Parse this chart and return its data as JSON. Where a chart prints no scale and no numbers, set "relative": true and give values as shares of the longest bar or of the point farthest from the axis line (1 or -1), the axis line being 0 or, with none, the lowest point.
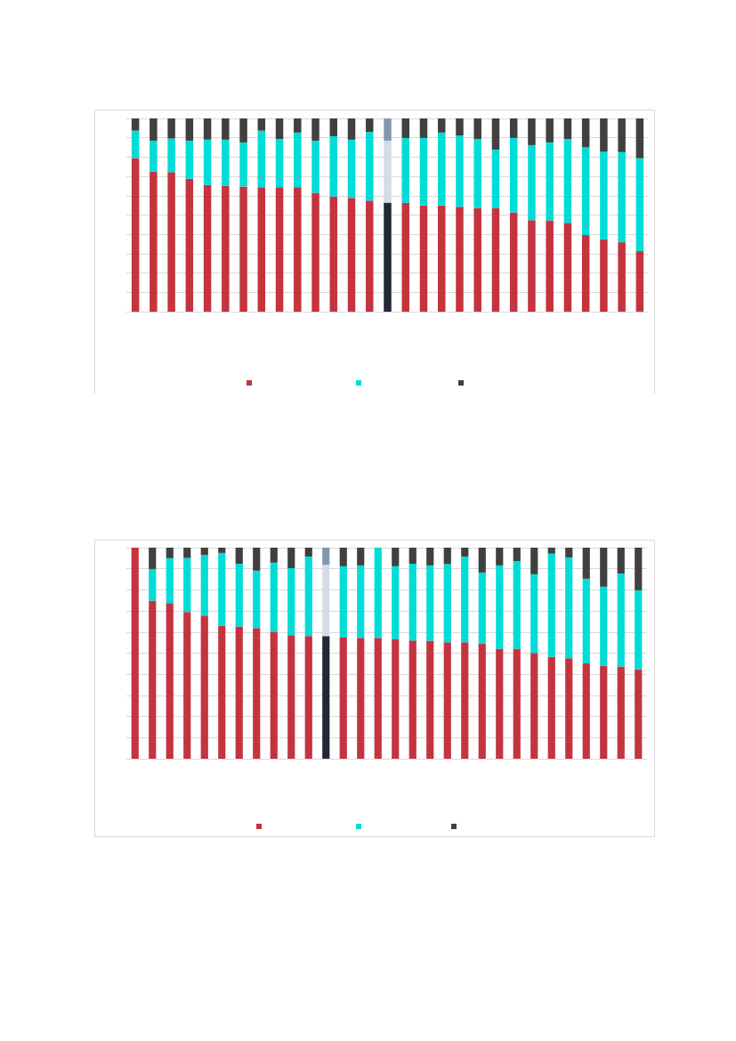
{
  "chart_data": [
    {
      "type": "bar",
      "stacked": true,
      "relative": true,
      "grid": "y",
      "categories": [
        null,
        null,
        null,
        null,
        null,
        null,
        null,
        null,
        null,
        null,
        null,
        null,
        null,
        null,
        null,
        null,
        null,
        null,
        null,
        null,
        null,
        null,
        null,
        null,
        null,
        null,
        null,
        null,
        null
      ],
      "series": [
        {
          "color": "#c4343f",
          "colors": [
            "#c4343f",
            "#c4343f",
            "#c4343f",
            "#c4343f",
            "#c4343f",
            "#c4343f",
            "#c4343f",
            "#c4343f",
            "#c4343f",
            "#c4343f",
            "#c4343f",
            "#c4343f",
            "#c4343f",
            "#c4343f",
            "#222834",
            "#c4343f",
            "#c4343f",
            "#c4343f",
            "#c4343f",
            "#c4343f",
            "#c4343f",
            "#c4343f",
            "#c4343f",
            "#c4343f",
            "#c4343f",
            "#c4343f",
            "#c4343f",
            "#c4343f",
            "#c4343f"
          ],
          "values": [
            0.795,
            0.726,
            0.722,
            0.688,
            0.656,
            0.651,
            0.648,
            0.644,
            0.644,
            0.644,
            0.615,
            0.596,
            0.589,
            0.575,
            0.564,
            0.563,
            0.55,
            0.55,
            0.543,
            0.537,
            0.537,
            0.514,
            0.474,
            0.472,
            0.46,
            0.396,
            0.373,
            0.359,
            0.313
          ]
        },
        {
          "color": "#00dcd6",
          "colors": [
            "#00dcd6",
            "#00dcd6",
            "#00dcd6",
            "#00dcd6",
            "#00dcd6",
            "#00dcd6",
            "#00dcd6",
            "#00dcd6",
            "#00dcd6",
            "#00dcd6",
            "#00dcd6",
            "#00dcd6",
            "#00dcd6",
            "#00dcd6",
            "#d6dce5",
            "#00dcd6",
            "#00dcd6",
            "#00dcd6",
            "#00dcd6",
            "#00dcd6",
            "#00dcd6",
            "#00dcd6",
            "#00dcd6",
            "#00dcd6",
            "#00dcd6",
            "#00dcd6",
            "#00dcd6",
            "#00dcd6",
            "#00dcd6"
          ],
          "values": [
            0.142,
            0.159,
            0.174,
            0.197,
            0.234,
            0.239,
            0.228,
            0.293,
            0.25,
            0.283,
            0.27,
            0.312,
            0.301,
            0.355,
            0.321,
            0.336,
            0.349,
            0.377,
            0.368,
            0.356,
            0.302,
            0.385,
            0.388,
            0.404,
            0.433,
            0.456,
            0.456,
            0.467,
            0.481
          ]
        },
        {
          "color": "#404040",
          "colors": [
            "#404040",
            "#404040",
            "#404040",
            "#404040",
            "#404040",
            "#404040",
            "#404040",
            "#404040",
            "#404040",
            "#404040",
            "#404040",
            "#404040",
            "#404040",
            "#404040",
            "#8497b0",
            "#404040",
            "#404040",
            "#404040",
            "#404040",
            "#404040",
            "#404040",
            "#404040",
            "#404040",
            "#404040",
            "#404040",
            "#404040",
            "#404040",
            "#404040",
            "#404040"
          ],
          "values": [
            0.063,
            0.115,
            0.104,
            0.115,
            0.11,
            0.11,
            0.124,
            0.063,
            0.106,
            0.073,
            0.115,
            0.092,
            0.11,
            0.07,
            0.115,
            0.101,
            0.101,
            0.073,
            0.089,
            0.107,
            0.161,
            0.101,
            0.138,
            0.124,
            0.107,
            0.148,
            0.171,
            0.174,
            0.206
          ]
        }
      ]
    },
    {
      "type": "bar",
      "stacked": true,
      "relative": true,
      "grid": "y",
      "categories": [
        null,
        null,
        null,
        null,
        null,
        null,
        null,
        null,
        null,
        null,
        null,
        null,
        null,
        null,
        null,
        null,
        null,
        null,
        null,
        null,
        null,
        null,
        null,
        null,
        null,
        null,
        null,
        null,
        null,
        null
      ],
      "series": [
        {
          "color": "#c4343f",
          "colors": [
            "#c4343f",
            "#c4343f",
            "#c4343f",
            "#c4343f",
            "#c4343f",
            "#c4343f",
            "#c4343f",
            "#c4343f",
            "#c4343f",
            "#c4343f",
            "#c4343f",
            "#222834",
            "#c4343f",
            "#c4343f",
            "#c4343f",
            "#c4343f",
            "#c4343f",
            "#c4343f",
            "#c4343f",
            "#c4343f",
            "#c4343f",
            "#c4343f",
            "#c4343f",
            "#c4343f",
            "#c4343f",
            "#c4343f",
            "#c4343f",
            "#c4343f",
            "#c4343f",
            "#c4343f"
          ],
          "values": [
            1,
            0.749,
            0.737,
            0.695,
            0.678,
            0.63,
            0.627,
            0.619,
            0.602,
            0.585,
            0.581,
            0.581,
            0.574,
            0.573,
            0.573,
            0.567,
            0.56,
            0.559,
            0.552,
            0.552,
            0.546,
            0.521,
            0.521,
            0.501,
            0.483,
            0.476,
            0.451,
            0.441,
            0.437,
            0.424
          ]
        },
        {
          "color": "#00dcd6",
          "colors": [
            "#00dcd6",
            "#00dcd6",
            "#00dcd6",
            "#00dcd6",
            "#00dcd6",
            "#00dcd6",
            "#00dcd6",
            "#00dcd6",
            "#00dcd6",
            "#00dcd6",
            "#00dcd6",
            "#d6dce5",
            "#00dcd6",
            "#00dcd6",
            "#00dcd6",
            "#00dcd6",
            "#00dcd6",
            "#00dcd6",
            "#00dcd6",
            "#00dcd6",
            "#00dcd6",
            "#00dcd6",
            "#00dcd6",
            "#00dcd6",
            "#00dcd6",
            "#00dcd6",
            "#00dcd6",
            "#00dcd6",
            "#00dcd6",
            "#00dcd6"
          ],
          "values": [
            0,
            0.15,
            0.213,
            0.256,
            0.287,
            0.345,
            0.297,
            0.272,
            0.327,
            0.318,
            0.377,
            0.338,
            0.338,
            0.343,
            0.427,
            0.345,
            0.364,
            0.357,
            0.37,
            0.406,
            0.336,
            0.395,
            0.415,
            0.373,
            0.488,
            0.478,
            0.402,
            0.374,
            0.44,
            0.374
          ]
        },
        {
          "color": "#404040",
          "colors": [
            "#404040",
            "#404040",
            "#404040",
            "#404040",
            "#404040",
            "#404040",
            "#404040",
            "#404040",
            "#404040",
            "#404040",
            "#404040",
            "#8497b0",
            "#404040",
            "#404040",
            "#404040",
            "#404040",
            "#404040",
            "#404040",
            "#404040",
            "#404040",
            "#404040",
            "#404040",
            "#404040",
            "#404040",
            "#404040",
            "#404040",
            "#404040",
            "#404040",
            "#404040",
            "#404040"
          ],
          "values": [
            0,
            0.101,
            0.05,
            0.049,
            0.035,
            0.025,
            0.076,
            0.109,
            0.071,
            0.097,
            0.042,
            0.081,
            0.088,
            0.084,
            0,
            0.088,
            0.076,
            0.084,
            0.078,
            0.042,
            0.118,
            0.084,
            0.064,
            0.126,
            0.029,
            0.046,
            0.147,
            0.185,
            0.123,
            0.202
          ]
        }
      ]
    }
  ]
}
